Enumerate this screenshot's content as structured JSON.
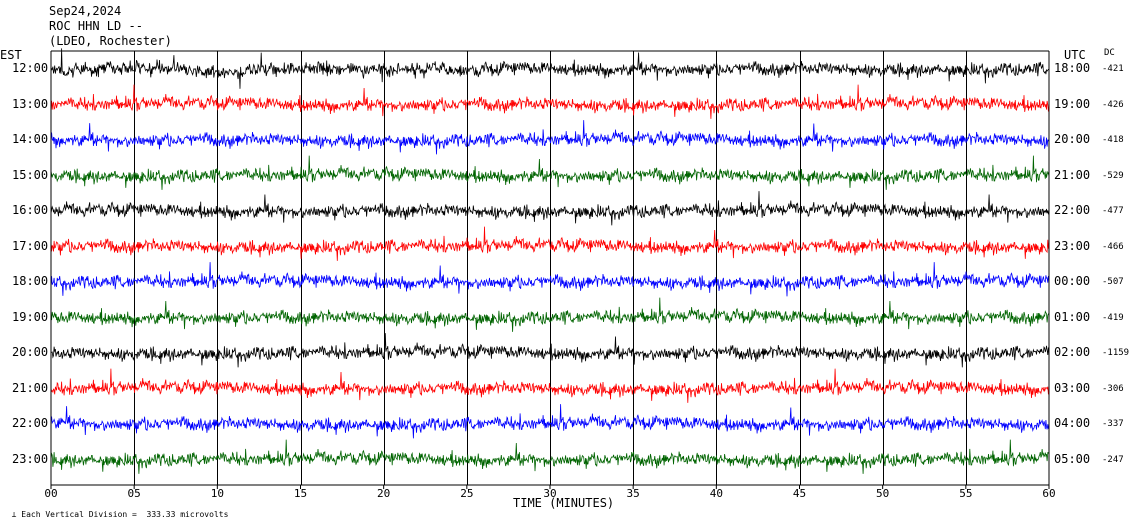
{
  "header": {
    "date": "Sep24,2024",
    "station": "ROC HHN LD --",
    "network": "(LDEO, Rochester)"
  },
  "axes": {
    "left_label": "EST",
    "right_label": "UTC",
    "dc_label": "DC",
    "xlabel": "TIME (MINUTES)",
    "footer": "Each Vertical Division =  333.33 microvolts"
  },
  "chart_data": {
    "type": "line",
    "title": "",
    "xlabel": "TIME (MINUTES)",
    "xlim": [
      0,
      60
    ],
    "x_ticks": [
      "00",
      "05",
      "10",
      "15",
      "20",
      "25",
      "30",
      "35",
      "40",
      "45",
      "50",
      "55",
      "60"
    ],
    "grid": true,
    "rows": [
      {
        "est": "12:00",
        "utc": "18:00",
        "dc": "-421",
        "color": "#000000"
      },
      {
        "est": "13:00",
        "utc": "19:00",
        "dc": "-426",
        "color": "#ff0000"
      },
      {
        "est": "14:00",
        "utc": "20:00",
        "dc": "-418",
        "color": "#0000ff"
      },
      {
        "est": "15:00",
        "utc": "21:00",
        "dc": "-529",
        "color": "#006400"
      },
      {
        "est": "16:00",
        "utc": "22:00",
        "dc": "-477",
        "color": "#000000"
      },
      {
        "est": "17:00",
        "utc": "23:00",
        "dc": "-466",
        "color": "#ff0000"
      },
      {
        "est": "18:00",
        "utc": "00:00",
        "dc": "-507",
        "color": "#0000ff"
      },
      {
        "est": "19:00",
        "utc": "01:00",
        "dc": "-419",
        "color": "#006400"
      },
      {
        "est": "20:00",
        "utc": "02:00",
        "dc": "-1159",
        "color": "#000000"
      },
      {
        "est": "21:00",
        "utc": "03:00",
        "dc": "-306",
        "color": "#ff0000"
      },
      {
        "est": "22:00",
        "utc": "04:00",
        "dc": "-337",
        "color": "#0000ff"
      },
      {
        "est": "23:00",
        "utc": "05:00",
        "dc": "-247",
        "color": "#006400"
      }
    ]
  }
}
